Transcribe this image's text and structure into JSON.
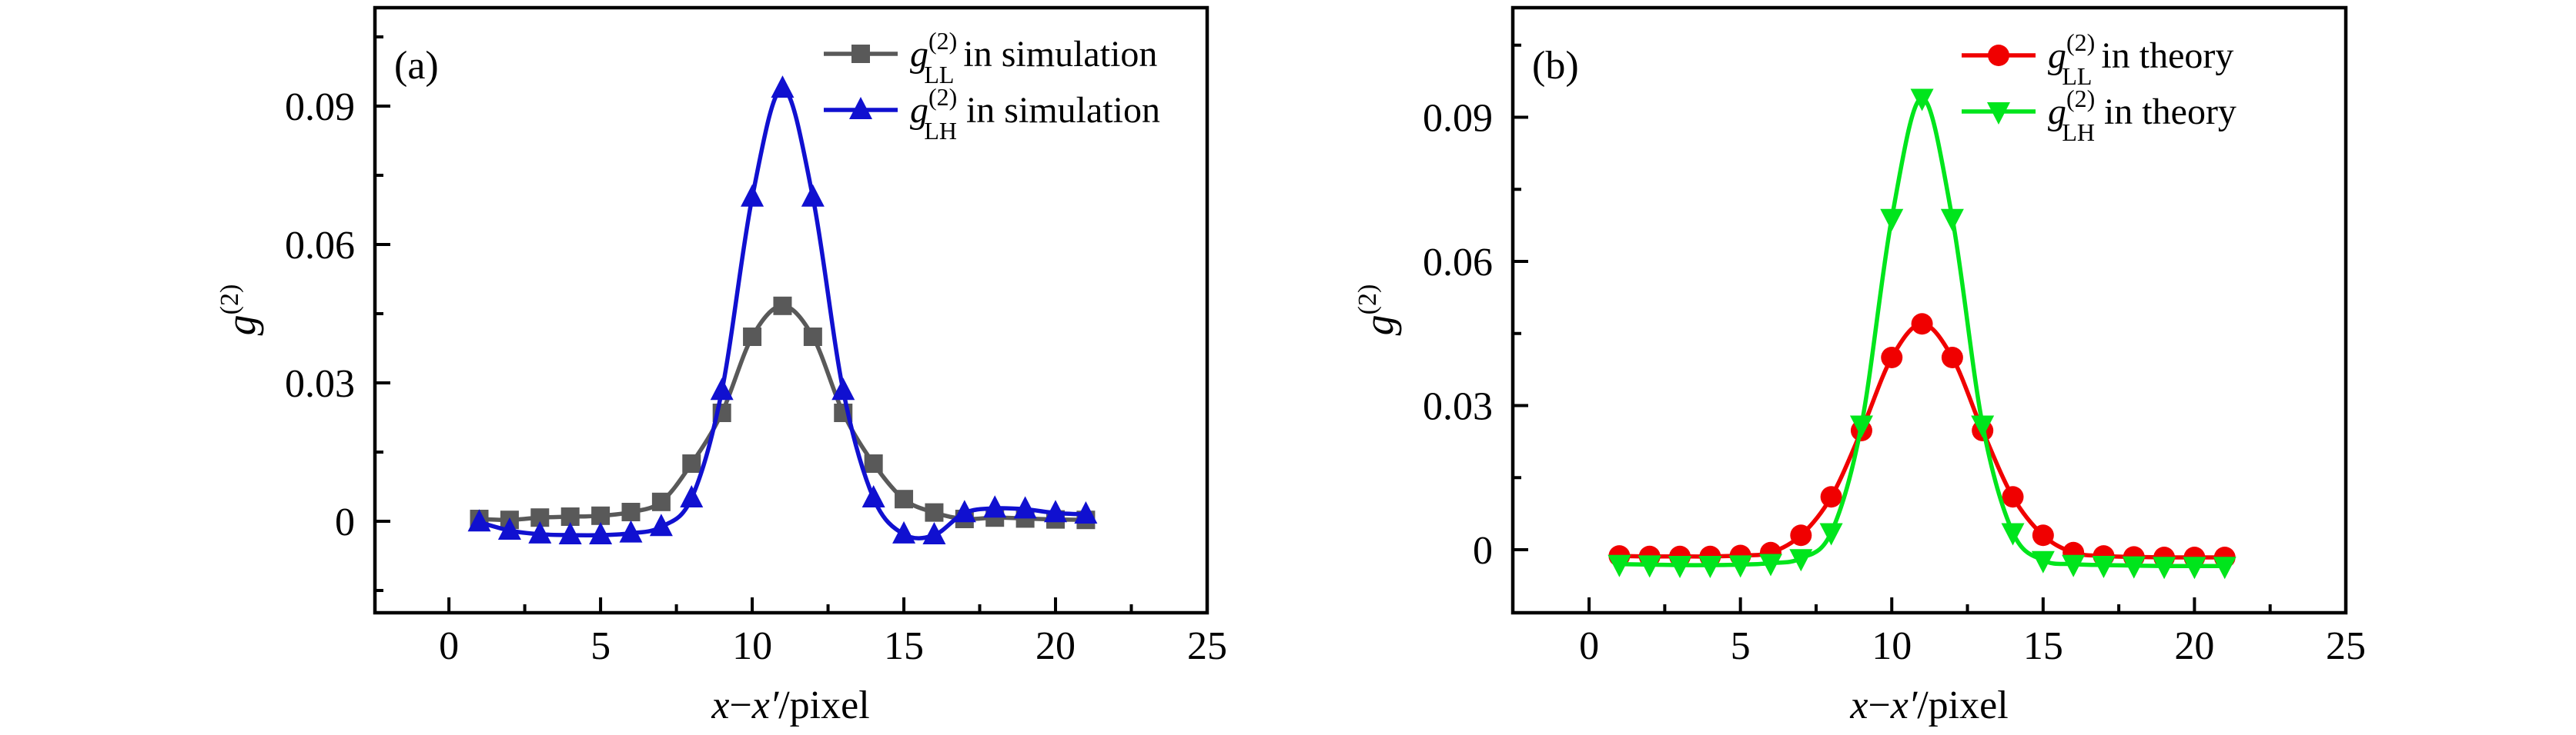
{
  "chart_data": [
    {
      "type": "line",
      "panel_tag": "(a)",
      "ylabel": {
        "base": "g",
        "sup": "(2)"
      },
      "xlabel_parts": [
        [
          "x",
          true
        ],
        [
          "−",
          false
        ],
        [
          "x′",
          true
        ],
        [
          "/pixel",
          false
        ]
      ],
      "xlim": [
        -2.44,
        25
      ],
      "ylim": [
        -0.01983,
        0.11133
      ],
      "xticks": [
        0,
        5,
        10,
        15,
        20,
        25
      ],
      "xminorticks": [
        2.5,
        7.5,
        12.5,
        17.5,
        22.5
      ],
      "yticks": [
        [
          0,
          "0"
        ],
        [
          0.03,
          "0.03"
        ],
        [
          0.06,
          "0.06"
        ],
        [
          0.09,
          "0.09"
        ]
      ],
      "yminorticks": [
        -0.015,
        0.015,
        0.045,
        0.075,
        0.105
      ],
      "grid": false,
      "legend_position": "top-right",
      "x": [
        1,
        2,
        3,
        4,
        5,
        6,
        7,
        8,
        9,
        10,
        11,
        12,
        13,
        14,
        15,
        16,
        17,
        18,
        19,
        20,
        21
      ],
      "series": [
        {
          "name": "g_LL^(2) in simulation",
          "label": {
            "base": "g",
            "sup": "(2)",
            "sub": "LL",
            "rest": " in simulation"
          },
          "color": "#595959",
          "marker": "square",
          "values": [
            0.0005,
            0.0003,
            0.0008,
            0.001,
            0.0012,
            0.002,
            0.0042,
            0.0125,
            0.0235,
            0.04,
            0.0467,
            0.04,
            0.0235,
            0.0125,
            0.0048,
            0.0019,
            0.0005,
            0.0008,
            0.0006,
            0.0004,
            0.0003
          ]
        },
        {
          "name": "g_LH^(2) in simulation",
          "label": {
            "base": "g",
            "sup": "(2)",
            "sub": "LH",
            "rest": " in simulation"
          },
          "color": "#1010d0",
          "marker": "triangle-up",
          "values": [
            -0.0002,
            -0.002,
            -0.0028,
            -0.003,
            -0.003,
            -0.0026,
            -0.0012,
            0.005,
            0.0283,
            0.0702,
            0.0938,
            0.0702,
            0.0283,
            0.005,
            -0.0028,
            -0.003,
            0.0018,
            0.0028,
            0.0026,
            0.0018,
            0.0015
          ]
        }
      ]
    },
    {
      "type": "line",
      "panel_tag": "(b)",
      "ylabel": {
        "base": "g",
        "sup": "(2)"
      },
      "xlabel_parts": [
        [
          "x",
          true
        ],
        [
          "−",
          false
        ],
        [
          "x′",
          true
        ],
        [
          "/pixel",
          false
        ]
      ],
      "xlim": [
        -2.52,
        25
      ],
      "ylim": [
        -0.01312,
        0.1128
      ],
      "xticks": [
        0,
        5,
        10,
        15,
        20,
        25
      ],
      "xminorticks": [
        2.5,
        7.5,
        12.5,
        17.5,
        22.5
      ],
      "yticks": [
        [
          0,
          "0"
        ],
        [
          0.03,
          "0.03"
        ],
        [
          0.06,
          "0.06"
        ],
        [
          0.09,
          "0.09"
        ]
      ],
      "yminorticks": [
        0.015,
        0.045,
        0.075,
        0.105
      ],
      "grid": false,
      "legend_position": "top-right",
      "x": [
        1,
        2,
        3,
        4,
        5,
        6,
        7,
        8,
        9,
        10,
        11,
        12,
        13,
        14,
        15,
        16,
        17,
        18,
        19,
        20,
        21
      ],
      "series": [
        {
          "name": "g_LL^(2) in theory",
          "label": {
            "base": "g",
            "sup": "(2)",
            "sub": "LL",
            "rest": " in theory"
          },
          "color": "#f00000",
          "marker": "circle",
          "values": [
            -0.0013,
            -0.0014,
            -0.0014,
            -0.0014,
            -0.0012,
            -0.0006,
            0.003,
            0.011,
            0.0248,
            0.04,
            0.047,
            0.04,
            0.0248,
            0.011,
            0.003,
            -0.0006,
            -0.0013,
            -0.0015,
            -0.0016,
            -0.0016,
            -0.0016
          ]
        },
        {
          "name": "g_LH^(2) in theory",
          "label": {
            "base": "g",
            "sup": "(2)",
            "sub": "LH",
            "rest": " in theory"
          },
          "color": "#00e51c",
          "marker": "triangle-down",
          "values": [
            -0.003,
            -0.0031,
            -0.0032,
            -0.0032,
            -0.0031,
            -0.0028,
            -0.0018,
            0.0036,
            0.026,
            0.069,
            0.094,
            0.069,
            0.026,
            0.0036,
            -0.0022,
            -0.003,
            -0.0032,
            -0.0033,
            -0.0034,
            -0.0034,
            -0.0034
          ]
        }
      ]
    }
  ]
}
